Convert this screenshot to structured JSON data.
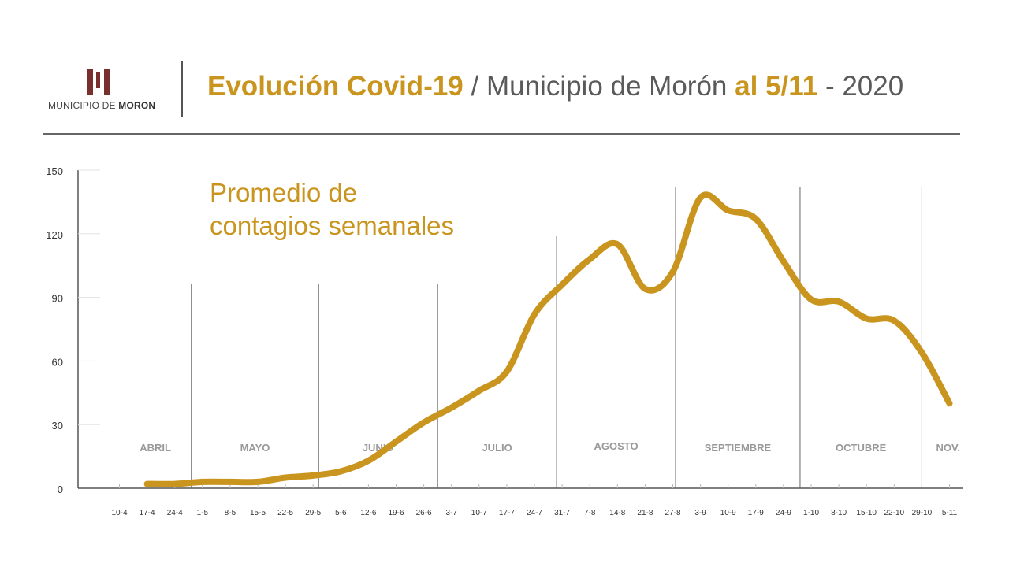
{
  "header": {
    "logo_prefix": "MUNICIPIO DE ",
    "logo_bold": "MORON",
    "title_part1": "Evolución Covid-19",
    "title_part2": " / Municipio de Morón ",
    "title_part3": "al 5/11",
    "title_part4": " - 2020"
  },
  "colors": {
    "accent": "#c9951e",
    "text_gray": "#5a5a5a",
    "logo": "#7a2f2f"
  },
  "chart_data": {
    "type": "line",
    "title": "Promedio de\ncontagios semanales",
    "xlabel": "",
    "ylabel": "",
    "ylim": [
      0,
      150
    ],
    "yticks": [
      0,
      30,
      60,
      90,
      120,
      150
    ],
    "categories": [
      "10-4",
      "17-4",
      "24-4",
      "1-5",
      "8-5",
      "15-5",
      "22-5",
      "29-5",
      "5-6",
      "12-6",
      "19-6",
      "26-6",
      "3-7",
      "10-7",
      "17-7",
      "24-7",
      "31-7",
      "7-8",
      "14-8",
      "21-8",
      "27-8",
      "3-9",
      "10-9",
      "17-9",
      "24-9",
      "1-10",
      "8-10",
      "15-10",
      "22-10",
      "29-10",
      "5-11"
    ],
    "months": [
      {
        "label": "ABRIL",
        "start": 0,
        "end": 2.6
      },
      {
        "label": "MAYO",
        "start": 2.6,
        "end": 7.2
      },
      {
        "label": "JUNIO",
        "start": 7.2,
        "end": 11.5
      },
      {
        "label": "JULIO",
        "start": 11.5,
        "end": 15.8
      },
      {
        "label": "AGOSTO",
        "start": 15.8,
        "end": 20.1
      },
      {
        "label": "SEPTIEMBRE",
        "start": 20.1,
        "end": 24.6
      },
      {
        "label": "OCTUBRE",
        "start": 24.6,
        "end": 29.0
      },
      {
        "label": "NOV.",
        "start": 29.0,
        "end": 31.5
      }
    ],
    "series": [
      {
        "values": [
          null,
          2,
          2,
          3,
          3,
          3,
          5,
          6,
          8,
          13,
          22,
          31,
          38,
          46,
          55,
          82,
          96,
          108,
          115,
          94,
          102,
          137,
          131,
          127,
          107,
          89,
          88,
          80,
          79,
          64,
          40
        ]
      }
    ]
  }
}
